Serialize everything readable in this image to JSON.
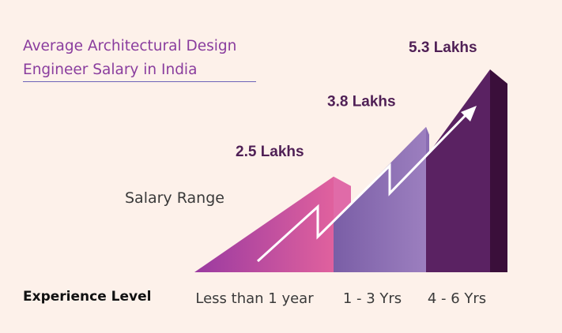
{
  "chart_data": {
    "type": "bar",
    "title": "Average Architectural Design Engineer Salary in India",
    "ylabel": "Salary Range",
    "xlabel": "Experience Level",
    "categories": [
      "Less than 1 year",
      "1 - 3 Yrs",
      "4 - 6 Yrs"
    ],
    "values": [
      2.5,
      3.8,
      5.3
    ],
    "value_labels": [
      "2.5 Lakhs",
      "3.8 Lakhs",
      "5.3 Lakhs"
    ],
    "ylim": [
      0,
      5.3
    ],
    "grid": false,
    "legend": "none"
  },
  "colors": {
    "background": "#fdf1ea",
    "title": "#8a3d9e",
    "bar1": [
      "#9a3aa0",
      "#e0619e"
    ],
    "bar2": [
      "#7e62a8",
      "#9a7cbd"
    ],
    "bar3": [
      "#5a2262",
      "#3a0f3a"
    ],
    "arrow": "#ffffff",
    "value_text": "#4f1f55"
  },
  "icons": {
    "trend": "trend-arrow-icon"
  }
}
